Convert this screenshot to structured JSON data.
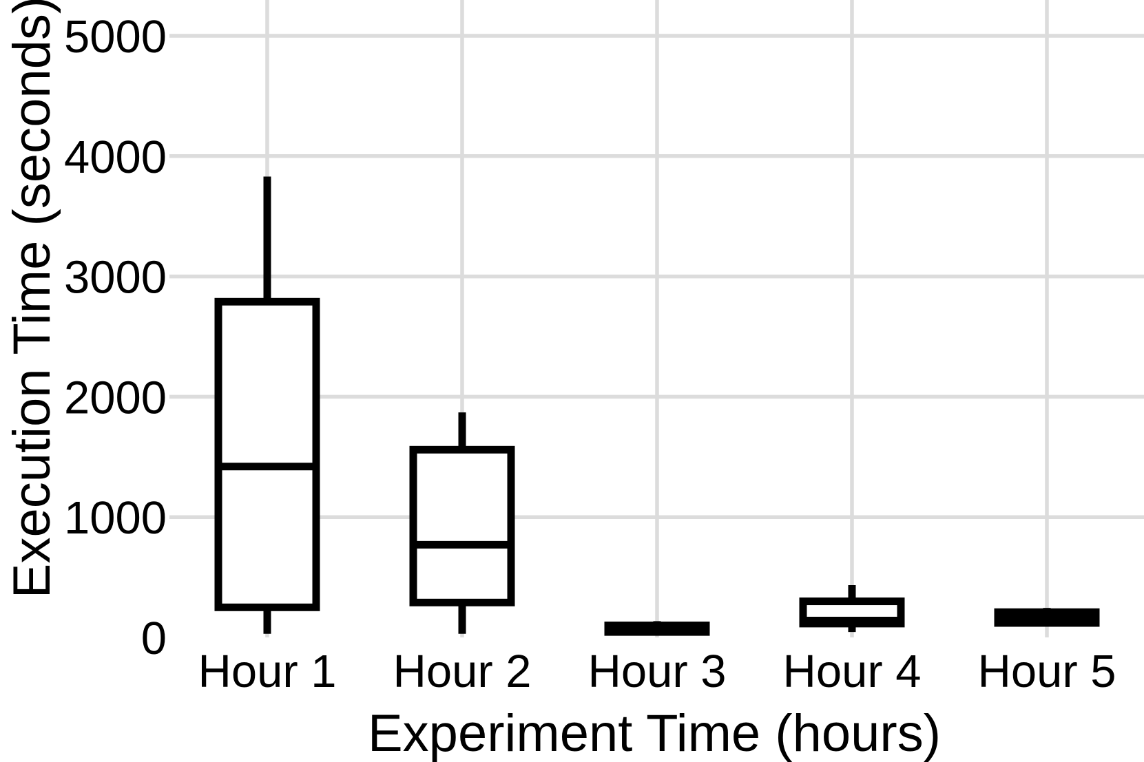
{
  "figure": {
    "background": "#ffffff",
    "box_color": "#000000",
    "box_fill": "#ffffff",
    "grid_color": "#dcdcdc",
    "text_color": "#000000"
  },
  "y_axis": {
    "label": "Execution Time (seconds)",
    "tick_labels": [
      "0",
      "1000",
      "2000",
      "3000",
      "4000",
      "5000"
    ],
    "tick_values": [
      0,
      1000,
      2000,
      3000,
      4000,
      5000
    ]
  },
  "x_axis": {
    "label": "Experiment Time (hours)",
    "tick_labels": [
      "Hour 1",
      "Hour 2",
      "Hour 3",
      "Hour 4",
      "Hour 5"
    ]
  },
  "chart_data": {
    "type": "boxplot",
    "title": "",
    "xlabel": "Experiment Time (hours)",
    "ylabel": "Execution Time (seconds)",
    "categories": [
      "Hour 1",
      "Hour 2",
      "Hour 3",
      "Hour 4",
      "Hour 5"
    ],
    "series": [
      {
        "name": "Execution Time",
        "boxes": [
          {
            "category": "Hour 1",
            "whisker_low": 30,
            "q1": 250,
            "median": 1420,
            "q3": 2790,
            "whisker_high": 3830
          },
          {
            "category": "Hour 2",
            "whisker_low": 30,
            "q1": 290,
            "median": 770,
            "q3": 1560,
            "whisker_high": 1870
          },
          {
            "category": "Hour 3",
            "whisker_low": 30,
            "q1": 45,
            "median": 70,
            "q3": 100,
            "whisker_high": 135
          },
          {
            "category": "Hour 4",
            "whisker_low": 45,
            "q1": 115,
            "median": 140,
            "q3": 300,
            "whisker_high": 435
          },
          {
            "category": "Hour 5",
            "whisker_low": 90,
            "q1": 120,
            "median": 155,
            "q3": 210,
            "whisker_high": 245
          }
        ]
      }
    ],
    "ylim": [
      0,
      5300
    ],
    "yticks": [
      0,
      1000,
      2000,
      3000,
      4000,
      5000
    ],
    "grid": true,
    "gridline_at_zero": false,
    "legend": false,
    "orientation": "vertical"
  }
}
